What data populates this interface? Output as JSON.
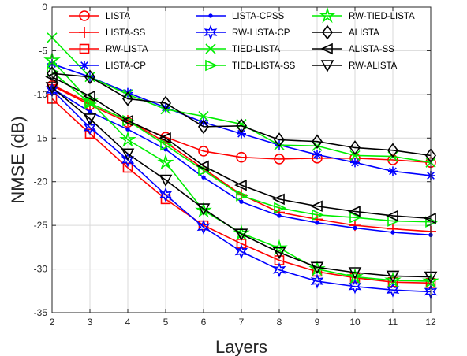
{
  "chart_data": {
    "type": "line",
    "xlabel": "Layers",
    "ylabel": "NMSE (dB)",
    "xlim": [
      2,
      12
    ],
    "ylim": [
      -35,
      0
    ],
    "xticks": [
      "2",
      "3",
      "4",
      "5",
      "6",
      "7",
      "8",
      "9",
      "10",
      "11",
      "12"
    ],
    "yticks": [
      "0",
      "-5",
      "-10",
      "-15",
      "-20",
      "-25",
      "-30",
      "-35"
    ],
    "x": [
      2,
      3,
      4,
      5,
      6,
      7,
      8,
      9,
      10,
      11,
      12
    ],
    "grid": true,
    "legend_position": "top",
    "series": [
      {
        "name": "LISTA",
        "color": "#ff0000",
        "marker": "circle",
        "values": [
          -9.0,
          -11.2,
          -13.2,
          -14.9,
          -16.5,
          -17.2,
          -17.4,
          -17.3,
          -17.3,
          -17.5,
          -17.8
        ]
      },
      {
        "name": "LISTA-SS",
        "color": "#ff0000",
        "marker": "plus",
        "values": [
          -8.9,
          -11.0,
          -13.0,
          -15.5,
          -18.5,
          -21.5,
          -23.5,
          -24.3,
          -25.0,
          -25.4,
          -25.7
        ]
      },
      {
        "name": "RW-LISTA",
        "color": "#ff0000",
        "marker": "square",
        "values": [
          -10.5,
          -14.5,
          -18.4,
          -22.0,
          -25.0,
          -27.1,
          -29.0,
          -30.3,
          -31.0,
          -31.5,
          -31.6
        ]
      },
      {
        "name": "LISTA-CP",
        "color": "#0000ff",
        "marker": "asterisk",
        "values": [
          -6.5,
          -8.0,
          -9.8,
          -11.5,
          -13.2,
          -14.5,
          -15.8,
          -16.9,
          -17.8,
          -18.8,
          -19.3
        ]
      },
      {
        "name": "LISTA-CPSS",
        "color": "#0000ff",
        "marker": "dot",
        "values": [
          -9.3,
          -12.0,
          -14.0,
          -16.3,
          -19.5,
          -22.3,
          -23.9,
          -24.7,
          -25.3,
          -25.8,
          -26.1
        ]
      },
      {
        "name": "RW-LISTA-CP",
        "color": "#0000ff",
        "marker": "hexagram",
        "values": [
          -9.5,
          -13.8,
          -17.5,
          -21.5,
          -25.2,
          -28.0,
          -30.1,
          -31.4,
          -32.0,
          -32.4,
          -32.6
        ]
      },
      {
        "name": "TIED-LISTA",
        "color": "#00ee00",
        "marker": "x",
        "values": [
          -3.5,
          -8.0,
          -10.0,
          -11.7,
          -12.5,
          -13.4,
          -15.8,
          -15.9,
          -17.0,
          -17.1,
          -17.8
        ]
      },
      {
        "name": "TIED-LISTA-SS",
        "color": "#00ee00",
        "marker": "triangle-right",
        "values": [
          -7.4,
          -11.0,
          -13.0,
          -15.8,
          -18.7,
          -21.6,
          -23.0,
          -23.8,
          -24.1,
          -24.5,
          -24.6
        ]
      },
      {
        "name": "RW-TIED-LISTA",
        "color": "#00ee00",
        "marker": "pentagram",
        "values": [
          -6.1,
          -10.8,
          -15.2,
          -17.8,
          -23.3,
          -25.9,
          -27.6,
          -30.0,
          -30.9,
          -31.3,
          -31.4
        ]
      },
      {
        "name": "ALISTA",
        "color": "#000000",
        "marker": "diamond",
        "values": [
          -7.6,
          -8.0,
          -10.5,
          -11.0,
          -13.7,
          -13.6,
          -15.2,
          -15.4,
          -16.1,
          -16.4,
          -17.0
        ]
      },
      {
        "name": "ALISTA-SS",
        "color": "#000000",
        "marker": "triangle-left",
        "values": [
          -8.0,
          -10.2,
          -13.0,
          -15.0,
          -18.2,
          -20.4,
          -22.0,
          -22.8,
          -23.4,
          -23.9,
          -24.2
        ]
      },
      {
        "name": "RW-ALISTA",
        "color": "#000000",
        "marker": "triangle-down",
        "values": [
          -9.2,
          -12.8,
          -16.8,
          -19.8,
          -23.1,
          -26.0,
          -28.1,
          -29.8,
          -30.4,
          -30.8,
          -30.9
        ]
      }
    ]
  }
}
